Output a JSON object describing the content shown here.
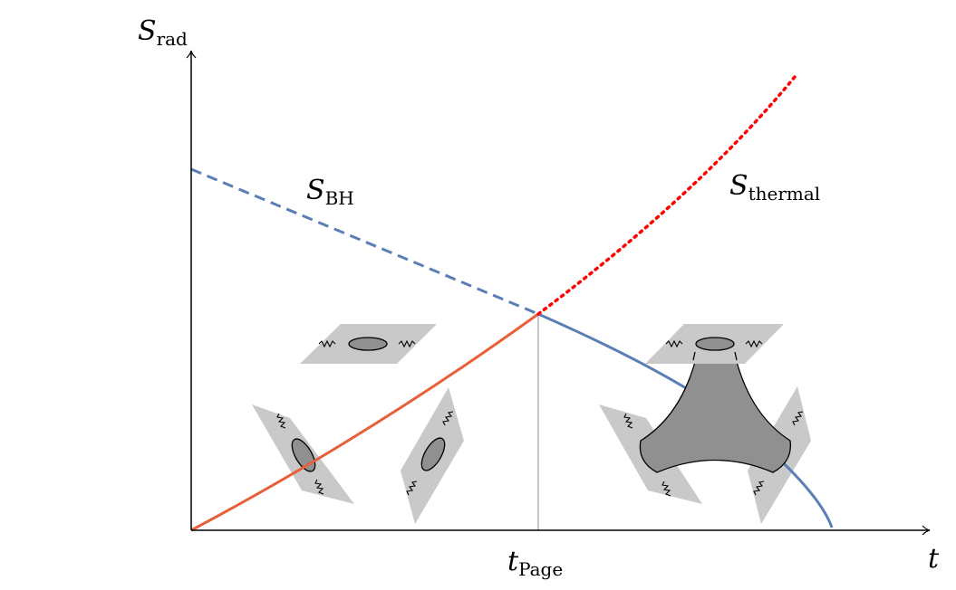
{
  "axes": {
    "y_label": {
      "main": "S",
      "sub": "rad"
    },
    "x_label": "t",
    "x_tick": {
      "main": "t",
      "sub": "Page"
    }
  },
  "curves": {
    "bh": {
      "main": "S",
      "sub": "BH",
      "color": "#5b7fb5"
    },
    "thermal": {
      "main": "S",
      "sub": "thermal",
      "color": "#ff0000"
    },
    "radiation_early": {
      "color": "#e8603a"
    },
    "radiation_late": {
      "color": "#5b7fb5"
    }
  }
}
